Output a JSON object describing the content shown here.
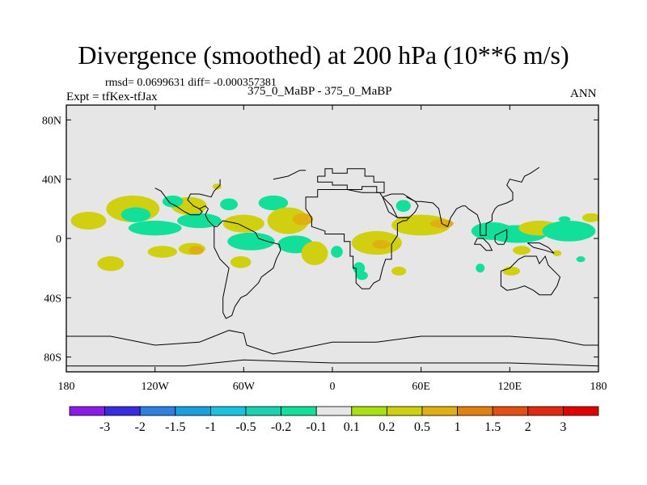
{
  "chart_data": {
    "type": "heatmap",
    "title": "Divergence (smoothed) at 200 hPa (10**6 m/s)",
    "subtitle_left": "rmsd= 0.0699631 diff= -0.000357381",
    "experiment": "Expt = tfKex-tfJax",
    "case_label": "375_0_MaBP - 375_0_MaBP",
    "season": "ANN",
    "x_ticks": [
      "180",
      "120W",
      "60W",
      "0",
      "60E",
      "120E",
      "180"
    ],
    "x_tick_values": [
      -180,
      -120,
      -60,
      0,
      60,
      120,
      180
    ],
    "y_ticks": [
      "80N",
      "40N",
      "0",
      "40S",
      "80S"
    ],
    "y_tick_values": [
      80,
      40,
      0,
      -40,
      -80
    ],
    "xlim": [
      -180,
      180
    ],
    "ylim": [
      -90,
      90
    ],
    "background_value": "-0.1 to 0.1",
    "background_color": "#e6e6e6",
    "colorbar": {
      "labels": [
        "-3",
        "-2",
        "-1.5",
        "-1",
        "-0.5",
        "-0.2",
        "-0.1",
        "0.1",
        "0.2",
        "0.5",
        "1",
        "1.5",
        "2",
        "3"
      ],
      "colors": [
        "#8a1be8",
        "#3b2be0",
        "#2e7fe0",
        "#1aa0e0",
        "#18c2e0",
        "#18d2b0",
        "#12e09a",
        "#e6e6e6",
        "#a8e010",
        "#d0d010",
        "#e0b010",
        "#e08010",
        "#e05010",
        "#e02a10",
        "#e00000"
      ]
    },
    "anomalies": [
      {
        "lon": -165,
        "lat": 12,
        "rx": 12,
        "ry": 6,
        "value": 0.2
      },
      {
        "lon": -135,
        "lat": 20,
        "rx": 18,
        "ry": 9,
        "value": 0.2
      },
      {
        "lon": -133,
        "lat": 16,
        "rx": 10,
        "ry": 5,
        "value": -0.2
      },
      {
        "lon": -120,
        "lat": 7,
        "rx": 18,
        "ry": 5,
        "value": -0.2
      },
      {
        "lon": -97,
        "lat": 22,
        "rx": 12,
        "ry": 6,
        "value": 0.2
      },
      {
        "lon": -90,
        "lat": 12,
        "rx": 15,
        "ry": 5,
        "value": -0.2
      },
      {
        "lon": -108,
        "lat": 25,
        "rx": 7,
        "ry": 4,
        "value": -0.2
      },
      {
        "lon": -70,
        "lat": 23,
        "rx": 6,
        "ry": 4,
        "value": -0.2
      },
      {
        "lon": -40,
        "lat": 24,
        "rx": 10,
        "ry": 5,
        "value": -0.2
      },
      {
        "lon": -60,
        "lat": 10,
        "rx": 14,
        "ry": 6,
        "value": 0.2
      },
      {
        "lon": -55,
        "lat": -2,
        "rx": 16,
        "ry": 6,
        "value": -0.2
      },
      {
        "lon": -30,
        "lat": 12,
        "rx": 14,
        "ry": 9,
        "value": 0.2
      },
      {
        "lon": -25,
        "lat": -4,
        "rx": 12,
        "ry": 6,
        "value": -0.2
      },
      {
        "lon": -20,
        "lat": 13,
        "rx": 7,
        "ry": 4,
        "value": 0.5
      },
      {
        "lon": -150,
        "lat": -17,
        "rx": 9,
        "ry": 5,
        "value": 0.2
      },
      {
        "lon": -115,
        "lat": -9,
        "rx": 10,
        "ry": 4,
        "value": 0.2
      },
      {
        "lon": -95,
        "lat": -7,
        "rx": 9,
        "ry": 4,
        "value": 0.2
      },
      {
        "lon": -92,
        "lat": -8,
        "rx": 5,
        "ry": 3,
        "value": 0.5
      },
      {
        "lon": -62,
        "lat": -16,
        "rx": 7,
        "ry": 4,
        "value": 0.2
      },
      {
        "lon": -12,
        "lat": -10,
        "rx": 9,
        "ry": 8,
        "value": 0.2
      },
      {
        "lon": 30,
        "lat": -3,
        "rx": 17,
        "ry": 8,
        "value": 0.2
      },
      {
        "lon": 33,
        "lat": -4,
        "rx": 6,
        "ry": 3,
        "value": 0.5
      },
      {
        "lon": 60,
        "lat": 9,
        "rx": 20,
        "ry": 7,
        "value": 0.2
      },
      {
        "lon": 74,
        "lat": 10,
        "rx": 8,
        "ry": 3,
        "value": 0.5
      },
      {
        "lon": 108,
        "lat": 5,
        "rx": 14,
        "ry": 6,
        "value": -0.2
      },
      {
        "lon": 125,
        "lat": 3,
        "rx": 20,
        "ry": 6,
        "value": -0.2
      },
      {
        "lon": 140,
        "lat": 7,
        "rx": 14,
        "ry": 5,
        "value": 0.2
      },
      {
        "lon": 160,
        "lat": 5,
        "rx": 18,
        "ry": 7,
        "value": -0.2
      },
      {
        "lon": 175,
        "lat": 14,
        "rx": 6,
        "ry": 3,
        "value": 0.2
      },
      {
        "lon": 48,
        "lat": 22,
        "rx": 5,
        "ry": 4,
        "value": -0.2
      },
      {
        "lon": 3,
        "lat": -9,
        "rx": 4,
        "ry": 4,
        "value": -0.2
      },
      {
        "lon": 18,
        "lat": -20,
        "rx": 4,
        "ry": 4,
        "value": -0.2
      },
      {
        "lon": 20,
        "lat": -25,
        "rx": 4,
        "ry": 3,
        "value": -0.2
      },
      {
        "lon": 45,
        "lat": -22,
        "rx": 5,
        "ry": 3,
        "value": 0.2
      },
      {
        "lon": 100,
        "lat": -20,
        "rx": 3,
        "ry": 3,
        "value": -0.2
      },
      {
        "lon": 121,
        "lat": -22,
        "rx": 6,
        "ry": 3,
        "value": 0.2
      },
      {
        "lon": 128,
        "lat": -8,
        "rx": 6,
        "ry": 3,
        "value": 0.2
      },
      {
        "lon": 152,
        "lat": -10,
        "rx": 3,
        "ry": 2,
        "value": 0.2
      },
      {
        "lon": 168,
        "lat": -14,
        "rx": 3,
        "ry": 2,
        "value": -0.2
      },
      {
        "lon": -78,
        "lat": 35,
        "rx": 3,
        "ry": 2,
        "value": 0.2
      },
      {
        "lon": 157,
        "lat": 13,
        "rx": 4,
        "ry": 2,
        "value": -0.2
      }
    ],
    "continent_outlines": [
      [
        [
          -10,
          42
        ],
        [
          -10,
          38
        ],
        [
          0,
          38
        ],
        [
          0,
          36
        ],
        [
          10,
          36
        ],
        [
          10,
          33
        ],
        [
          20,
          33
        ],
        [
          20,
          35
        ],
        [
          30,
          35
        ],
        [
          30,
          31
        ],
        [
          35,
          31
        ],
        [
          35,
          38
        ],
        [
          28,
          38
        ],
        [
          28,
          42
        ],
        [
          22,
          42
        ],
        [
          22,
          47
        ],
        [
          10,
          47
        ],
        [
          10,
          44
        ],
        [
          0,
          44
        ],
        [
          0,
          47
        ],
        [
          -5,
          47
        ],
        [
          -5,
          42
        ],
        [
          -10,
          42
        ]
      ],
      [
        [
          -10,
          33
        ],
        [
          -10,
          28
        ],
        [
          -18,
          28
        ],
        [
          -18,
          20
        ],
        [
          -14,
          14
        ],
        [
          -14,
          8
        ],
        [
          -5,
          5
        ],
        [
          -5,
          3
        ],
        [
          8,
          3
        ],
        [
          8,
          -2
        ],
        [
          12,
          -2
        ],
        [
          12,
          -12
        ],
        [
          14,
          -12
        ],
        [
          14,
          -20
        ],
        [
          16,
          -20
        ],
        [
          16,
          -30
        ],
        [
          20,
          -34
        ],
        [
          25,
          -34
        ],
        [
          28,
          -30
        ],
        [
          32,
          -28
        ],
        [
          34,
          -20
        ],
        [
          36,
          -14
        ],
        [
          40,
          -14
        ],
        [
          40,
          -4
        ],
        [
          44,
          2
        ],
        [
          44,
          10
        ],
        [
          48,
          12
        ],
        [
          50,
          12
        ],
        [
          52,
          14
        ],
        [
          44,
          14
        ],
        [
          38,
          18
        ],
        [
          34,
          28
        ],
        [
          32,
          31
        ],
        [
          20,
          31
        ],
        [
          10,
          33
        ],
        [
          -10,
          33
        ]
      ],
      [
        [
          34,
          28
        ],
        [
          40,
          22
        ],
        [
          44,
          14
        ],
        [
          52,
          14
        ],
        [
          56,
          18
        ],
        [
          58,
          22
        ],
        [
          56,
          25
        ],
        [
          48,
          30
        ],
        [
          40,
          30
        ],
        [
          34,
          28
        ]
      ],
      [
        [
          50,
          28
        ],
        [
          56,
          25
        ],
        [
          60,
          25
        ],
        [
          68,
          24
        ],
        [
          72,
          20
        ],
        [
          74,
          10
        ],
        [
          78,
          8
        ],
        [
          80,
          14
        ],
        [
          84,
          20
        ],
        [
          88,
          22
        ],
        [
          90,
          22
        ],
        [
          92,
          20
        ],
        [
          98,
          16
        ],
        [
          100,
          10
        ],
        [
          100,
          2
        ],
        [
          104,
          2
        ],
        [
          104,
          10
        ],
        [
          108,
          12
        ],
        [
          108,
          16
        ],
        [
          110,
          20
        ],
        [
          112,
          22
        ],
        [
          118,
          24
        ],
        [
          122,
          26
        ],
        [
          122,
          31
        ],
        [
          118,
          36
        ],
        [
          120,
          40
        ],
        [
          128,
          38
        ],
        [
          130,
          42
        ],
        [
          134,
          44
        ],
        [
          140,
          48
        ]
      ],
      [
        [
          96,
          -4
        ],
        [
          98,
          0
        ],
        [
          102,
          0
        ],
        [
          106,
          -4
        ],
        [
          108,
          -8
        ],
        [
          104,
          -8
        ],
        [
          100,
          -4
        ],
        [
          96,
          -4
        ]
      ],
      [
        [
          110,
          2
        ],
        [
          118,
          6
        ],
        [
          118,
          0
        ],
        [
          116,
          -4
        ],
        [
          112,
          -4
        ],
        [
          110,
          -2
        ],
        [
          110,
          2
        ]
      ],
      [
        [
          132,
          -3
        ],
        [
          140,
          -3
        ],
        [
          146,
          -6
        ],
        [
          150,
          -10
        ],
        [
          144,
          -8
        ],
        [
          136,
          -6
        ],
        [
          132,
          -3
        ]
      ],
      [
        [
          114,
          -22
        ],
        [
          114,
          -32
        ],
        [
          118,
          -35
        ],
        [
          124,
          -34
        ],
        [
          130,
          -32
        ],
        [
          136,
          -35
        ],
        [
          140,
          -38
        ],
        [
          148,
          -38
        ],
        [
          152,
          -32
        ],
        [
          154,
          -26
        ],
        [
          150,
          -22
        ],
        [
          146,
          -18
        ],
        [
          144,
          -12
        ],
        [
          140,
          -17
        ],
        [
          138,
          -12
        ],
        [
          130,
          -12
        ],
        [
          126,
          -14
        ],
        [
          120,
          -20
        ],
        [
          114,
          -22
        ]
      ],
      [
        [
          -80,
          8
        ],
        [
          -78,
          8
        ],
        [
          -74,
          12
        ],
        [
          -64,
          10
        ],
        [
          -60,
          8
        ],
        [
          -52,
          4
        ],
        [
          -50,
          0
        ],
        [
          -44,
          -2
        ],
        [
          -36,
          -4
        ],
        [
          -35,
          -8
        ],
        [
          -38,
          -14
        ],
        [
          -40,
          -20
        ],
        [
          -44,
          -23
        ],
        [
          -48,
          -26
        ],
        [
          -50,
          -30
        ],
        [
          -54,
          -34
        ],
        [
          -58,
          -38
        ],
        [
          -62,
          -40
        ],
        [
          -66,
          -46
        ],
        [
          -68,
          -52
        ],
        [
          -72,
          -54
        ],
        [
          -74,
          -50
        ],
        [
          -74,
          -40
        ],
        [
          -72,
          -30
        ],
        [
          -70,
          -20
        ],
        [
          -76,
          -14
        ],
        [
          -80,
          -6
        ],
        [
          -80,
          2
        ],
        [
          -80,
          8
        ]
      ],
      [
        [
          -120,
          34
        ],
        [
          -116,
          32
        ],
        [
          -110,
          24
        ],
        [
          -106,
          22
        ],
        [
          -100,
          18
        ],
        [
          -96,
          16
        ],
        [
          -90,
          16
        ],
        [
          -88,
          18
        ],
        [
          -90,
          20
        ],
        [
          -94,
          22
        ],
        [
          -98,
          26
        ],
        [
          -96,
          30
        ],
        [
          -90,
          30
        ],
        [
          -82,
          28
        ],
        [
          -80,
          32
        ],
        [
          -76,
          36
        ],
        [
          -76,
          40
        ]
      ],
      [
        [
          -90,
          20
        ],
        [
          -86,
          22
        ],
        [
          -84,
          20
        ],
        [
          -86,
          16
        ],
        [
          -84,
          12
        ],
        [
          -82,
          10
        ],
        [
          -80,
          8
        ]
      ],
      [
        [
          -180,
          -66
        ],
        [
          -150,
          -66
        ],
        [
          -120,
          -72
        ],
        [
          -90,
          -70
        ],
        [
          -70,
          -62
        ],
        [
          -60,
          -64
        ],
        [
          -58,
          -72
        ],
        [
          -40,
          -78
        ],
        [
          -20,
          -74
        ],
        [
          0,
          -70
        ],
        [
          30,
          -70
        ],
        [
          60,
          -66
        ],
        [
          90,
          -66
        ],
        [
          120,
          -66
        ],
        [
          150,
          -68
        ],
        [
          170,
          -72
        ],
        [
          180,
          -72
        ]
      ],
      [
        [
          -180,
          -86
        ],
        [
          -100,
          -86
        ],
        [
          -60,
          -82
        ],
        [
          0,
          -84
        ],
        [
          60,
          -84
        ],
        [
          120,
          -84
        ],
        [
          180,
          -86
        ]
      ],
      [
        [
          -40,
          40
        ],
        [
          -30,
          42
        ],
        [
          -22,
          46
        ],
        [
          -18,
          46
        ]
      ]
    ]
  }
}
